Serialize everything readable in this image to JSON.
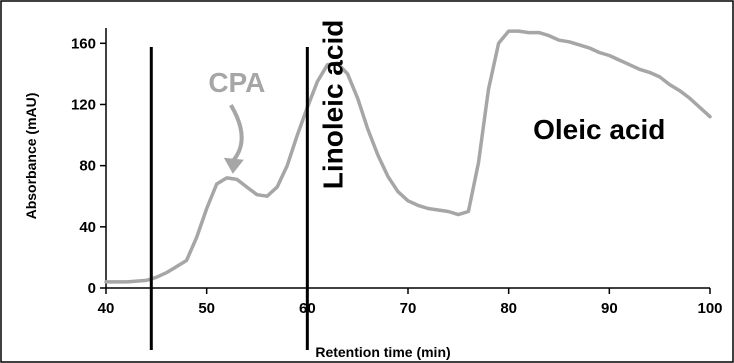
{
  "chart_data": {
    "type": "line",
    "title": "",
    "xlabel": "Retention time (min)",
    "ylabel": "Absorbance (mAU)",
    "xlim": [
      40,
      100
    ],
    "ylim": [
      0,
      170
    ],
    "xticks": [
      40,
      50,
      60,
      70,
      80,
      90,
      100
    ],
    "yticks": [
      0,
      40,
      80,
      120,
      160
    ],
    "grid": false,
    "legend": "none",
    "colors": {
      "line": "#a6a6a6",
      "markers": "#000000",
      "cpa_label": "#a6a6a6",
      "text": "#000000"
    },
    "series": [
      {
        "x": [
          40,
          42,
          44,
          45,
          46,
          47,
          48,
          49,
          50,
          51,
          52,
          53,
          54,
          55,
          56,
          57,
          58,
          59,
          60,
          61,
          62,
          63,
          64,
          65,
          66,
          67,
          68,
          69,
          70,
          71,
          72,
          73,
          74,
          75,
          76,
          77,
          78,
          79,
          80,
          81,
          82,
          83,
          84,
          85,
          86,
          87,
          88,
          89,
          90,
          91,
          92,
          93,
          94,
          95,
          96,
          97,
          98,
          99,
          100
        ],
        "y": [
          4,
          4,
          5,
          7,
          10,
          14,
          18,
          33,
          52,
          68,
          72,
          71,
          66,
          61,
          60,
          66,
          80,
          100,
          118,
          135,
          146,
          147,
          140,
          124,
          104,
          87,
          73,
          63,
          57,
          54,
          52,
          51,
          50,
          48,
          50,
          82,
          130,
          160,
          168,
          168,
          167,
          167,
          165,
          162,
          161,
          159,
          157,
          154,
          152,
          149,
          146,
          143,
          141,
          138,
          133,
          129,
          124,
          118,
          112
        ]
      }
    ],
    "vlines": [
      44.5,
      60
    ],
    "annotations": [
      {
        "text": "CPA",
        "x": 53,
        "y": 134,
        "arrow_to": [
          52.5,
          76
        ]
      },
      {
        "text": "Linoleic acid",
        "x": 62.5,
        "y": 120,
        "rotation": -90
      },
      {
        "text": "Oleic acid",
        "x": 89,
        "y": 104
      }
    ]
  }
}
